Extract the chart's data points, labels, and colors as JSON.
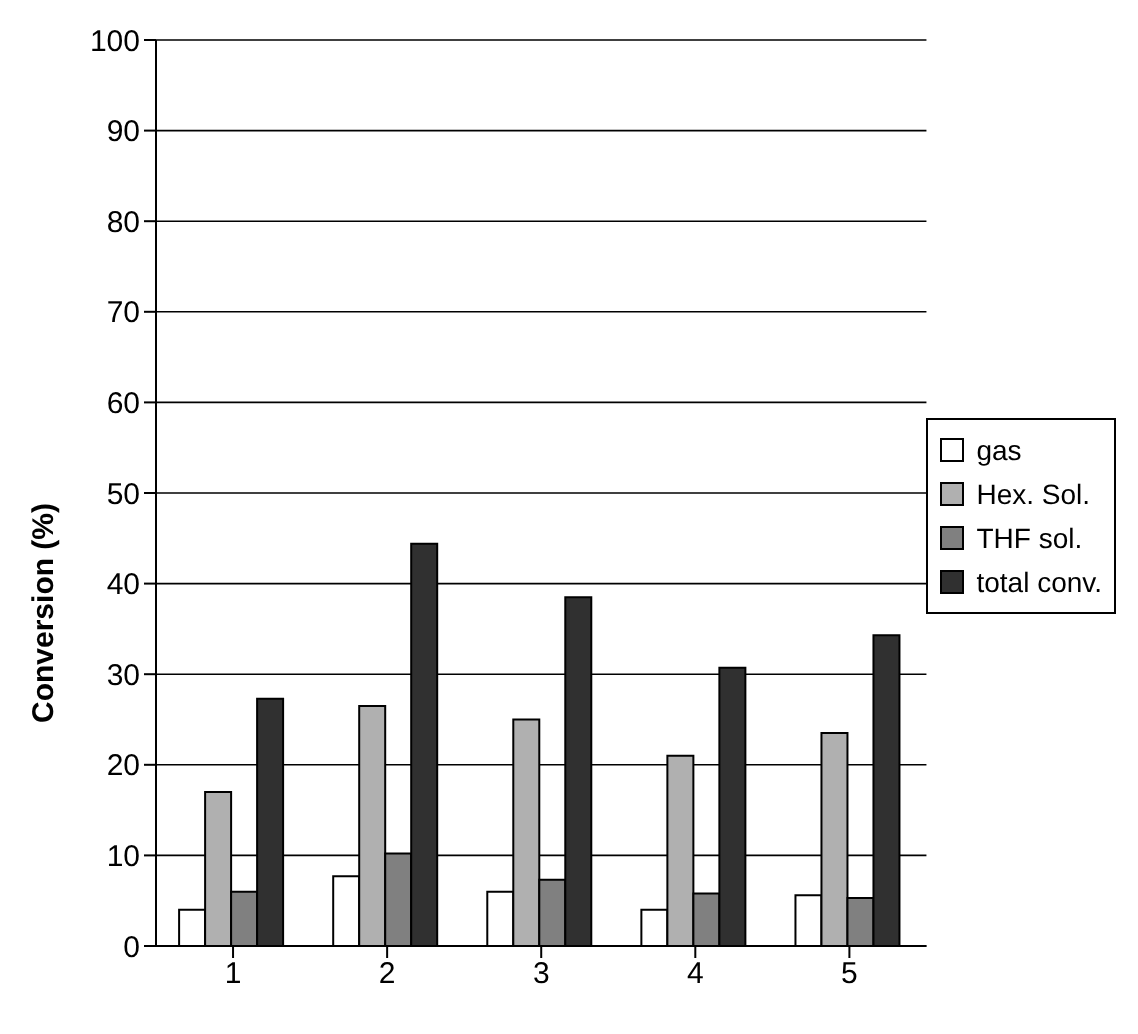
{
  "chart_data": {
    "type": "bar",
    "ylabel": "Conversion (%)",
    "categories": [
      "1",
      "2",
      "3",
      "4",
      "5"
    ],
    "series": [
      {
        "name": "gas",
        "color": "#ffffff",
        "values": [
          4,
          7.7,
          6,
          4,
          5.6
        ]
      },
      {
        "name": "Hex. Sol.",
        "color": "#b0b0b0",
        "values": [
          17,
          26.5,
          25,
          21,
          23.5
        ]
      },
      {
        "name": "THF sol.",
        "color": "#808080",
        "values": [
          6,
          10.2,
          7.3,
          5.8,
          5.3
        ]
      },
      {
        "name": "total conv.",
        "color": "#303030",
        "values": [
          27.3,
          44.4,
          38.5,
          30.7,
          34.3
        ]
      }
    ],
    "ylim": [
      0,
      100
    ],
    "yticks": [
      0,
      10,
      20,
      30,
      40,
      50,
      60,
      70,
      80,
      90,
      100
    ],
    "grid": "y",
    "legend": "right"
  }
}
